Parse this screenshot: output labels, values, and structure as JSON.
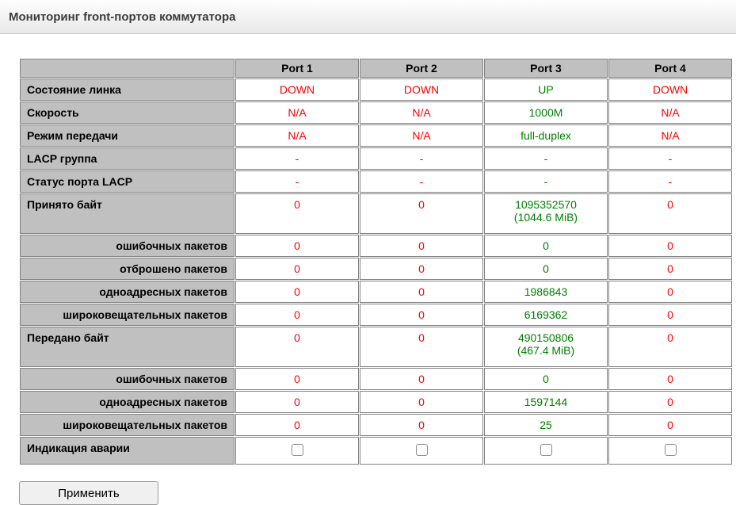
{
  "header": {
    "title": "Мониторинг front-портов коммутатора"
  },
  "colors": {
    "red": "#ff0000",
    "green": "#008000",
    "label_bg": "#c0c0c0",
    "border": "#828282"
  },
  "table": {
    "corner": "",
    "port_headers": [
      "Port 1",
      "Port 2",
      "Port 3",
      "Port 4"
    ],
    "rows": [
      {
        "label": "Состояние линка",
        "align": "left",
        "values": [
          "DOWN",
          "DOWN",
          "UP",
          "DOWN"
        ],
        "colors": [
          "red",
          "red",
          "green",
          "red"
        ]
      },
      {
        "label": "Скорость",
        "align": "left",
        "values": [
          "N/A",
          "N/A",
          "1000M",
          "N/A"
        ],
        "colors": [
          "red",
          "red",
          "green",
          "red"
        ]
      },
      {
        "label": "Режим передачи",
        "align": "left",
        "values": [
          "N/A",
          "N/A",
          "full-duplex",
          "N/A"
        ],
        "colors": [
          "red",
          "red",
          "green",
          "red"
        ]
      },
      {
        "label": "LACP группа",
        "align": "left",
        "values": [
          "-",
          "-",
          "-",
          "-"
        ],
        "colors": [
          "red",
          "red",
          "green",
          "red"
        ]
      },
      {
        "label": "Статус порта LACP",
        "align": "left",
        "values": [
          "-",
          "-",
          "-",
          "-"
        ],
        "colors": [
          "red",
          "red",
          "green",
          "red"
        ]
      },
      {
        "label": "Принято байт",
        "align": "left",
        "tall": true,
        "values": [
          "0",
          "0",
          "1095352570\n(1044.6 MiB)",
          "0"
        ],
        "colors": [
          "red",
          "red",
          "green",
          "red"
        ]
      },
      {
        "label": "ошибочных пакетов",
        "align": "right",
        "values": [
          "0",
          "0",
          "0",
          "0"
        ],
        "colors": [
          "red",
          "red",
          "green",
          "red"
        ]
      },
      {
        "label": "отброшено пакетов",
        "align": "right",
        "values": [
          "0",
          "0",
          "0",
          "0"
        ],
        "colors": [
          "red",
          "red",
          "green",
          "red"
        ]
      },
      {
        "label": "одноадресных пакетов",
        "align": "right",
        "values": [
          "0",
          "0",
          "1986843",
          "0"
        ],
        "colors": [
          "red",
          "red",
          "green",
          "red"
        ]
      },
      {
        "label": "широковещательных пакетов",
        "align": "right",
        "values": [
          "0",
          "0",
          "6169362",
          "0"
        ],
        "colors": [
          "red",
          "red",
          "green",
          "red"
        ]
      },
      {
        "label": "Передано байт",
        "align": "left",
        "tall": true,
        "values": [
          "0",
          "0",
          "490150806\n(467.4 MiB)",
          "0"
        ],
        "colors": [
          "red",
          "red",
          "green",
          "red"
        ]
      },
      {
        "label": "ошибочных пакетов",
        "align": "right",
        "values": [
          "0",
          "0",
          "0",
          "0"
        ],
        "colors": [
          "red",
          "red",
          "green",
          "red"
        ]
      },
      {
        "label": "одноадресных пакетов",
        "align": "right",
        "values": [
          "0",
          "0",
          "1597144",
          "0"
        ],
        "colors": [
          "red",
          "red",
          "green",
          "red"
        ]
      },
      {
        "label": "широковещательных пакетов",
        "align": "right",
        "values": [
          "0",
          "0",
          "25",
          "0"
        ],
        "colors": [
          "red",
          "red",
          "green",
          "red"
        ]
      },
      {
        "label": "Индикация аварии",
        "align": "left",
        "type": "checkbox",
        "checked": [
          false,
          false,
          false,
          false
        ]
      }
    ]
  },
  "footer": {
    "apply_label": "Применить"
  }
}
